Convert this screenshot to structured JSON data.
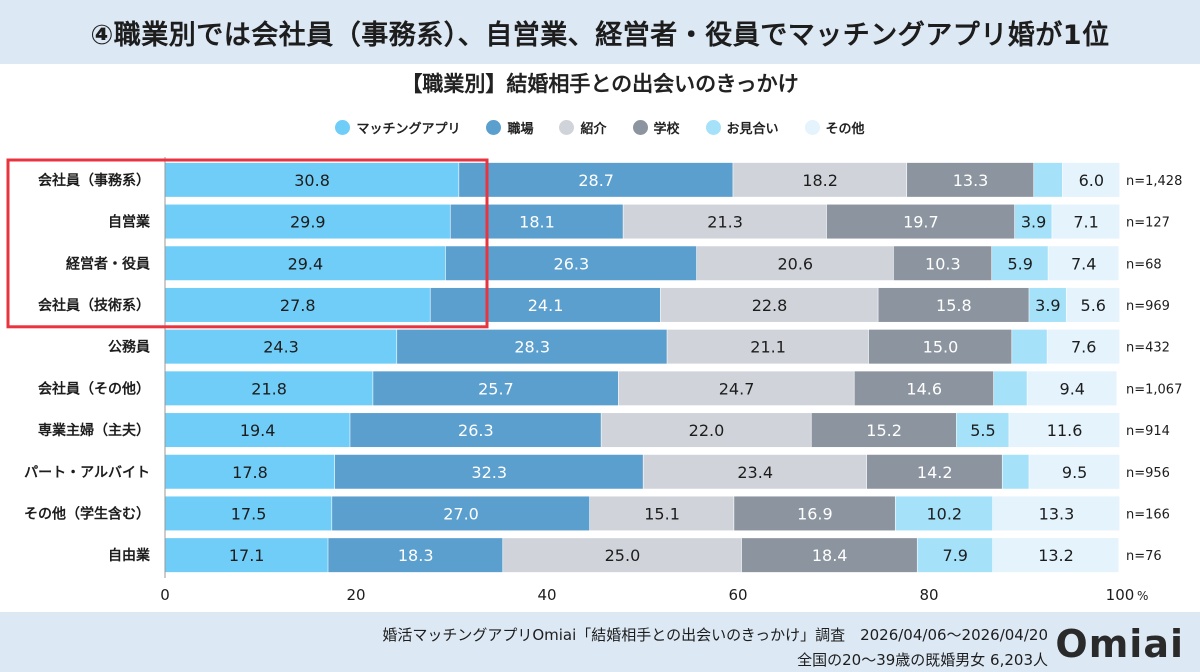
{
  "header": {
    "headline": "④職業別では会社員（事務系）、自営業、経営者・役員でマッチングアプリ婚が1位"
  },
  "footer": {
    "source": "婚活マッチングアプリOmiai「結婚相手との出会いのきっかけ」調査　2026/04/06〜2026/04/20",
    "sample": "全国の20〜39歳の既婚男女 6,203人",
    "logo": "Omiai"
  },
  "colors": {
    "highlight_box": "#e8343f",
    "header_band": "#dce8f4"
  },
  "chart_data": {
    "type": "bar",
    "orientation": "horizontal",
    "stacked": true,
    "title": "【職業別】結婚相手との出会いのきっかけ",
    "categories": [
      "会社員（事務系）",
      "自営業",
      "経営者・役員",
      "会社員（技術系）",
      "公務員",
      "会社員（その他）",
      "専業主婦（主夫）",
      "パート・アルバイト",
      "その他（学生含む）",
      "自由業"
    ],
    "sample_sizes": [
      "n=1,428",
      "n=127",
      "n=68",
      "n=969",
      "n=432",
      "n=1,067",
      "n=914",
      "n=956",
      "n=166",
      "n=76"
    ],
    "series": [
      {
        "name": "マッチングアプリ",
        "color": "#6fcdf7",
        "text_color": "#1d1d1d",
        "values": [
          30.8,
          29.9,
          29.4,
          27.8,
          24.3,
          21.8,
          19.4,
          17.8,
          17.5,
          17.1
        ]
      },
      {
        "name": "職場",
        "color": "#5b9fcf",
        "text_color": "#ffffff",
        "values": [
          28.7,
          18.1,
          26.3,
          24.1,
          28.3,
          25.7,
          26.3,
          32.3,
          27.0,
          18.3
        ]
      },
      {
        "name": "紹介",
        "color": "#d0d4da",
        "text_color": "#1d1d1d",
        "values": [
          18.2,
          21.3,
          20.6,
          22.8,
          21.1,
          24.7,
          22.0,
          23.4,
          15.1,
          25.0
        ]
      },
      {
        "name": "学校",
        "color": "#8c959f",
        "text_color": "#ffffff",
        "values": [
          13.3,
          19.7,
          10.3,
          15.8,
          15.0,
          14.6,
          15.2,
          14.2,
          16.9,
          18.4
        ]
      },
      {
        "name": "お見合い",
        "color": "#a6e1fa",
        "text_color": "#1d1d1d",
        "values": [
          3.0,
          3.9,
          5.9,
          3.9,
          3.7,
          3.5,
          5.5,
          2.8,
          10.2,
          7.9
        ]
      },
      {
        "name": "その他",
        "color": "#e4f3fc",
        "text_color": "#1d1d1d",
        "values": [
          6.0,
          7.1,
          7.4,
          5.6,
          7.6,
          9.4,
          11.6,
          9.5,
          13.3,
          13.2
        ]
      }
    ],
    "hidden_labels": [
      [
        0,
        4
      ],
      [
        4,
        4
      ],
      [
        5,
        4
      ],
      [
        7,
        4
      ]
    ],
    "highlighted_rows": [
      0,
      1,
      2,
      3
    ],
    "xlim": [
      0,
      100
    ],
    "xticks": [
      0,
      20,
      40,
      60,
      80,
      100
    ],
    "tick_labels": [
      "0",
      "20",
      "40",
      "60",
      "80",
      "100"
    ],
    "x_unit": "%",
    "grid": false,
    "legend_position": "top-center"
  }
}
